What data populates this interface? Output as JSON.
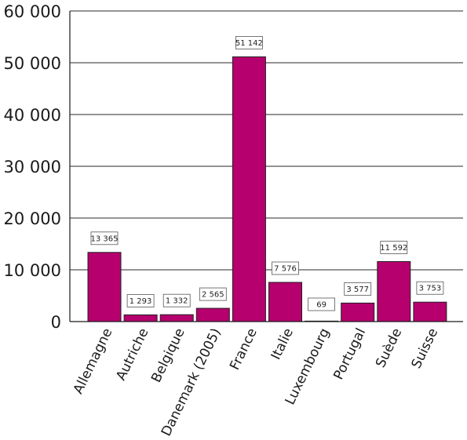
{
  "chart_data": {
    "type": "bar",
    "title": "",
    "xlabel": "",
    "ylabel": "",
    "categories": [
      "Allemagne",
      "Autriche",
      "Belgique",
      "Danemark (2005)",
      "France",
      "Italie",
      "Luxembourg",
      "Portugal",
      "Suède",
      "Suisse"
    ],
    "values": [
      13365,
      1293,
      1332,
      2565,
      51142,
      7576,
      69,
      3577,
      11592,
      3753
    ],
    "value_labels": [
      "13 365",
      "1 293",
      "1 332",
      "2 565",
      "51 142",
      "7 576",
      "69",
      "3 577",
      "11 592",
      "3 753"
    ],
    "ylim": [
      0,
      60000
    ],
    "yticks": [
      0,
      10000,
      20000,
      30000,
      40000,
      50000,
      60000
    ],
    "ytick_labels": [
      "0",
      "10 000",
      "20 000",
      "30 000",
      "40 000",
      "50 000",
      "60 000"
    ],
    "grid": true,
    "legend": "none",
    "bar_color": "#b5006e"
  }
}
